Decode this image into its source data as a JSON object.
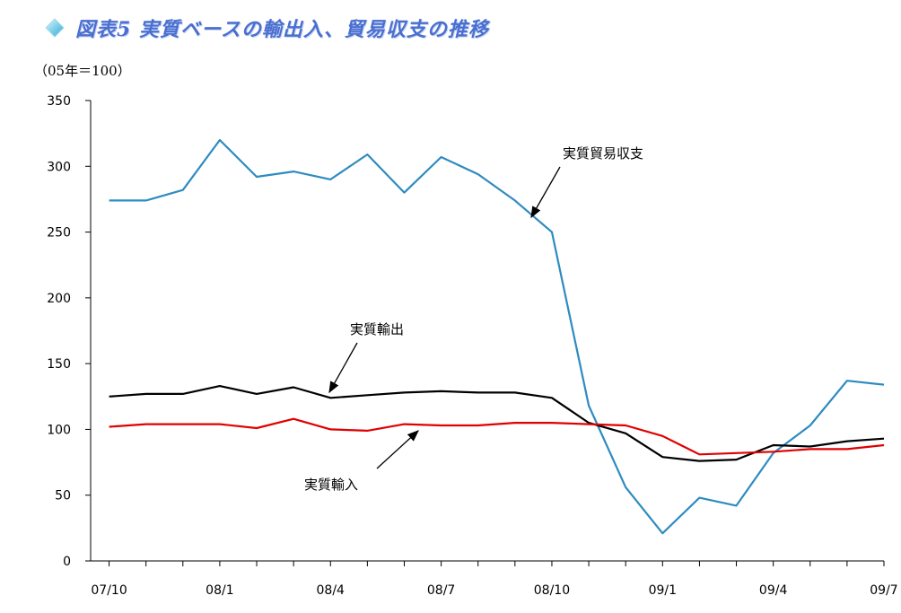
{
  "title": "図表5 実質ベースの輸出入、貿易収支の推移",
  "unit_label": "（05年＝100）",
  "colors": {
    "trade_balance": "#2e8bc0",
    "exports": "#000000",
    "imports": "#e00000",
    "axis": "#000000",
    "title": "#4a6fd0"
  },
  "icons": {
    "title_marker": "diamond-icon"
  },
  "chart_data": {
    "type": "line",
    "ylim": [
      0,
      350
    ],
    "yticks": [
      0,
      50,
      100,
      150,
      200,
      250,
      300,
      350
    ],
    "x_tick_labels": [
      "07/10",
      "08/1",
      "08/4",
      "08/7",
      "08/10",
      "09/1",
      "09/4",
      "09/7"
    ],
    "x": [
      "07/10",
      "07/11",
      "07/12",
      "08/1",
      "08/2",
      "08/3",
      "08/4",
      "08/5",
      "08/6",
      "08/7",
      "08/8",
      "08/9",
      "08/10",
      "08/11",
      "08/12",
      "09/1",
      "09/2",
      "09/3",
      "09/4",
      "09/5",
      "09/6",
      "09/7"
    ],
    "series": [
      {
        "name": "実質貿易収支",
        "key": "trade_balance",
        "values": [
          274,
          274,
          282,
          320,
          292,
          296,
          290,
          309,
          280,
          307,
          294,
          274,
          250,
          118,
          56,
          21,
          48,
          42,
          82,
          103,
          137,
          134
        ]
      },
      {
        "name": "実質輸出",
        "key": "exports",
        "values": [
          125,
          127,
          127,
          133,
          127,
          132,
          124,
          126,
          128,
          129,
          128,
          128,
          124,
          105,
          97,
          79,
          76,
          77,
          88,
          87,
          91,
          93
        ]
      },
      {
        "name": "実質輸入",
        "key": "imports",
        "values": [
          102,
          104,
          104,
          104,
          101,
          108,
          100,
          99,
          104,
          103,
          103,
          105,
          105,
          104,
          103,
          95,
          81,
          82,
          83,
          85,
          85,
          88
        ]
      }
    ],
    "annotations": [
      {
        "text": "実質貿易収支",
        "series": "trade_balance"
      },
      {
        "text": "実質輸出",
        "series": "exports"
      },
      {
        "text": "実質輸入",
        "series": "imports"
      }
    ]
  }
}
